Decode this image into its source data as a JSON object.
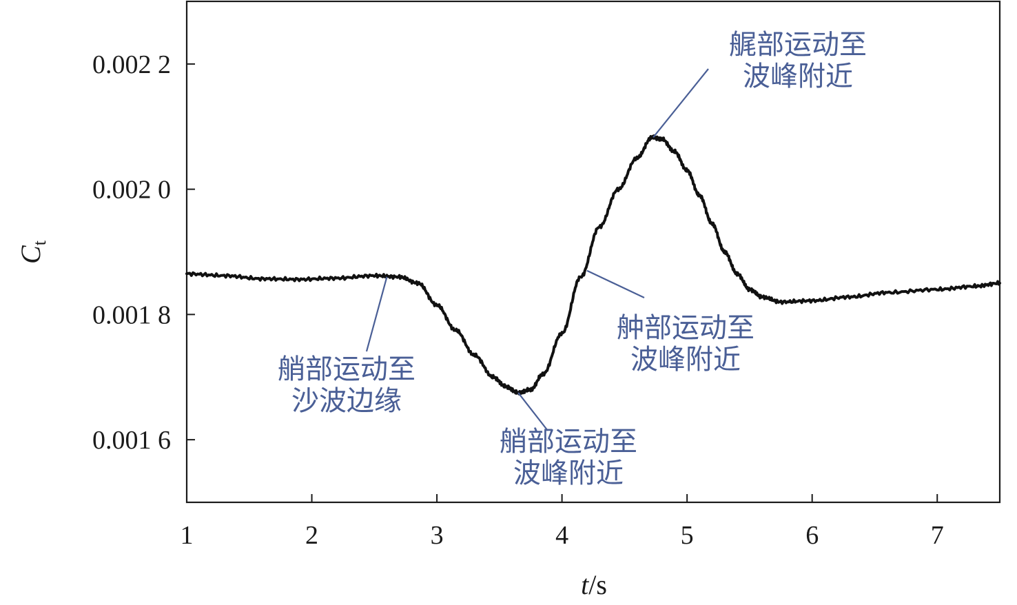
{
  "chart_data": {
    "type": "line",
    "xlabel": {
      "var": "t",
      "unit": "/s"
    },
    "ylabel": {
      "var": "C",
      "sub": "t"
    },
    "xlim": [
      1,
      7.5
    ],
    "ylim": [
      0.0015,
      0.0023
    ],
    "x_ticks": [
      1,
      2,
      3,
      4,
      5,
      6,
      7
    ],
    "x_tick_labels": [
      "1",
      "2",
      "3",
      "4",
      "5",
      "6",
      "7"
    ],
    "y_ticks": [
      0.0016,
      0.0018,
      0.002,
      0.0022
    ],
    "y_tick_labels": [
      "0.001 6",
      "0.001 8",
      "0.002 0",
      "0.002 2"
    ],
    "grid": false,
    "series": [
      {
        "color": "#111111",
        "x": [
          1.0,
          1.3,
          1.6,
          1.9,
          2.2,
          2.5,
          2.7,
          2.85,
          3.0,
          3.15,
          3.3,
          3.45,
          3.55,
          3.65,
          3.75,
          3.85,
          4.0,
          4.15,
          4.3,
          4.45,
          4.6,
          4.72,
          4.8,
          4.9,
          5.0,
          5.1,
          5.2,
          5.3,
          5.4,
          5.5,
          5.6,
          5.75,
          6.0,
          6.3,
          6.6,
          7.0,
          7.3,
          7.5
        ],
        "y": [
          0.001865,
          0.001862,
          0.001857,
          0.001856,
          0.001858,
          0.001862,
          0.00186,
          0.00185,
          0.001815,
          0.001775,
          0.001735,
          0.0017,
          0.001685,
          0.001675,
          0.00168,
          0.001705,
          0.00177,
          0.00186,
          0.00194,
          0.002,
          0.00205,
          0.002083,
          0.00208,
          0.00206,
          0.00203,
          0.00199,
          0.001945,
          0.0019,
          0.001865,
          0.00184,
          0.001828,
          0.00182,
          0.001822,
          0.001828,
          0.001835,
          0.00184,
          0.001845,
          0.00185
        ]
      }
    ],
    "annotations": [
      {
        "lines": [
          "艉部运动至",
          "波峰附近"
        ],
        "point": [
          4.73,
          0.002083
        ]
      },
      {
        "lines": [
          "艄部运动至",
          "沙波边缘"
        ],
        "point": [
          2.6,
          0.00186
        ]
      },
      {
        "lines": [
          "艄部运动至",
          "波峰附近"
        ],
        "point": [
          3.65,
          0.001675
        ]
      },
      {
        "lines": [
          "舯部运动至",
          "波峰附近"
        ],
        "point": [
          4.2,
          0.00187
        ]
      }
    ]
  }
}
